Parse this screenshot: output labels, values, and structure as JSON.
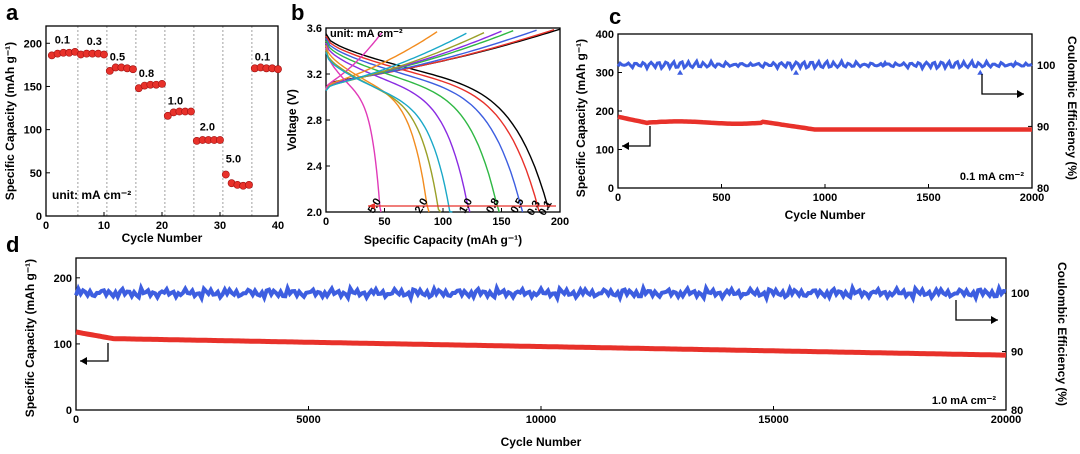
{
  "colors": {
    "red": "#e8312a",
    "blue": "#3d5ee0",
    "black": "#000000"
  },
  "chart_data": [
    {
      "panel": "a",
      "type": "scatter",
      "xlabel": "Cycle Number",
      "ylabel": "Specific Capacity (mAh g⁻¹)",
      "xlim": [
        0,
        40
      ],
      "ylim": [
        0,
        220
      ],
      "xticks": [
        0,
        10,
        20,
        30,
        40
      ],
      "yticks": [
        0,
        50,
        100,
        150,
        200
      ],
      "unit_label": "unit: mA cm⁻²",
      "rate_labels": [
        "0.1",
        "0.3",
        "0.5",
        "0.8",
        "1.0",
        "2.0",
        "5.0",
        "0.1"
      ],
      "series": [
        {
          "name": "Specific Capacity",
          "values": [
            [
              1,
              186
            ],
            [
              2,
              188
            ],
            [
              3,
              189
            ],
            [
              4,
              189
            ],
            [
              5,
              190
            ],
            [
              6,
              187
            ],
            [
              7,
              188
            ],
            [
              8,
              188
            ],
            [
              9,
              188
            ],
            [
              10,
              187
            ],
            [
              11,
              168
            ],
            [
              12,
              172
            ],
            [
              13,
              172
            ],
            [
              14,
              171
            ],
            [
              15,
              170
            ],
            [
              16,
              148
            ],
            [
              17,
              151
            ],
            [
              18,
              152
            ],
            [
              19,
              152
            ],
            [
              20,
              153
            ],
            [
              21,
              116
            ],
            [
              22,
              120
            ],
            [
              23,
              121
            ],
            [
              24,
              121
            ],
            [
              25,
              121
            ],
            [
              26,
              87
            ],
            [
              27,
              88
            ],
            [
              28,
              88
            ],
            [
              29,
              88
            ],
            [
              30,
              88
            ],
            [
              31,
              48
            ],
            [
              32,
              38
            ],
            [
              33,
              36
            ],
            [
              34,
              35
            ],
            [
              35,
              36
            ],
            [
              36,
              171
            ],
            [
              37,
              172
            ],
            [
              38,
              171
            ],
            [
              39,
              171
            ],
            [
              40,
              170
            ]
          ]
        }
      ]
    },
    {
      "panel": "b",
      "type": "line",
      "xlabel": "Specific Capacity (mAh g⁻¹)",
      "ylabel": "Voltage (V)",
      "xlim": [
        0,
        200
      ],
      "ylim": [
        2.0,
        3.6
      ],
      "xticks": [
        0,
        50,
        100,
        150,
        200
      ],
      "yticks": [
        2.0,
        2.4,
        2.8,
        3.2,
        3.6
      ],
      "unit_label": "unit:  mA cm⁻²",
      "series": [
        {
          "name": "0.1",
          "color": "#000000",
          "charge_end": 200,
          "discharge_end": 190
        },
        {
          "name": "0.3",
          "color": "#e8312a",
          "charge_end": 195,
          "discharge_end": 182
        },
        {
          "name": "0.5",
          "color": "#3d5ee0",
          "charge_end": 180,
          "discharge_end": 168
        },
        {
          "name": "0.8",
          "color": "#2fb844",
          "charge_end": 160,
          "discharge_end": 148
        },
        {
          "name": "1.0",
          "color": "#8a2be2",
          "charge_end": 150,
          "discharge_end": 123
        },
        {
          "name": "2.0",
          "color": "#f28c1f",
          "charge_end": 95,
          "discharge_end": 88
        },
        {
          "name": "5.0",
          "color": "#e03ab8",
          "charge_end": 48,
          "discharge_end": 47
        },
        {
          "name": "",
          "color": "#9aa028",
          "charge_end": 135,
          "discharge_end": 98
        },
        {
          "name": "",
          "color": "#1aa8c8",
          "charge_end": 120,
          "discharge_end": 108
        }
      ]
    },
    {
      "panel": "c",
      "type": "scatter",
      "xlabel": "Cycle Number",
      "ylabel": "Specific Capacity (mAh g⁻¹)",
      "y2label": "Coulombic Efficiency (%)",
      "xlim": [
        0,
        2000
      ],
      "ylim": [
        0,
        400
      ],
      "y2lim": [
        80,
        105
      ],
      "xticks": [
        0,
        500,
        1000,
        1500,
        2000
      ],
      "yticks": [
        0,
        100,
        200,
        300,
        400
      ],
      "y2ticks": [
        80,
        90,
        100
      ],
      "annotation": "0.1 mA cm⁻²",
      "capacity": {
        "start": 185,
        "plateau": 172,
        "end": 152
      },
      "coulombic_efficiency": 100
    },
    {
      "panel": "d",
      "type": "scatter",
      "xlabel": "Cycle Number",
      "ylabel": "Specific Capacity (mAh g⁻¹)",
      "y2label": "Coulombic Efficiency (%)",
      "xlim": [
        0,
        20000
      ],
      "ylim": [
        0,
        230
      ],
      "y2lim": [
        80,
        106
      ],
      "xticks": [
        0,
        5000,
        10000,
        15000,
        20000
      ],
      "yticks": [
        0,
        100,
        200
      ],
      "y2ticks": [
        80,
        90,
        100
      ],
      "annotation": "1.0  mA cm⁻²",
      "capacity": {
        "start": 118,
        "after_fade": 108,
        "end": 83
      },
      "coulombic_efficiency": 100
    }
  ]
}
